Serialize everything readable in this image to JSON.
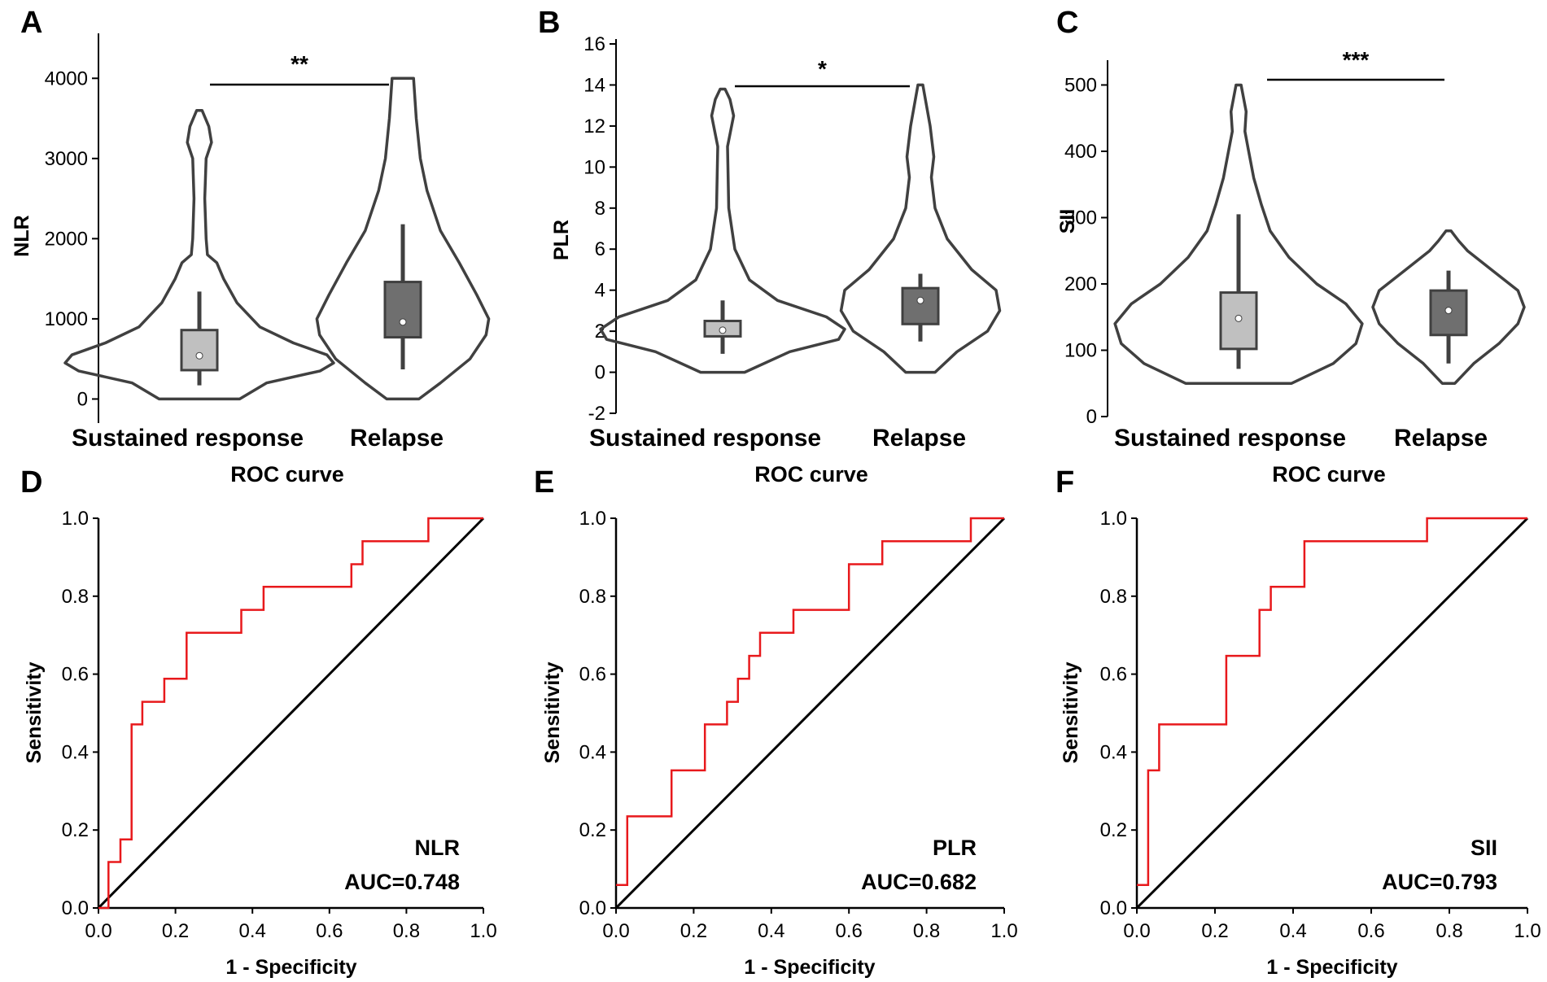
{
  "chart_data": [
    {
      "panel": "A",
      "type": "violin",
      "ylabel": "NLR",
      "ylim": [
        -300,
        4500
      ],
      "yticks": [
        0,
        1000,
        2000,
        3000,
        4000
      ],
      "categories": [
        "Sustained response",
        "Relapse"
      ],
      "significance": "**",
      "groups": [
        {
          "name": "Sustained response",
          "box_fill": "#c0c0c0",
          "whisker_low": 170,
          "q1": 360,
          "median": 540,
          "q3": 860,
          "whisker_high": 1340,
          "violin": [
            [
              0,
              0.3
            ],
            [
              200,
              0.5
            ],
            [
              350,
              0.9
            ],
            [
              450,
              1.0
            ],
            [
              550,
              0.95
            ],
            [
              700,
              0.7
            ],
            [
              900,
              0.45
            ],
            [
              1200,
              0.28
            ],
            [
              1500,
              0.18
            ],
            [
              1700,
              0.13
            ],
            [
              1800,
              0.06
            ],
            [
              2000,
              0.05
            ],
            [
              2500,
              0.04
            ],
            [
              3000,
              0.05
            ],
            [
              3200,
              0.09
            ],
            [
              3400,
              0.07
            ],
            [
              3600,
              0.02
            ]
          ]
        },
        {
          "name": "Relapse",
          "box_fill": "#6f6f6f",
          "whisker_low": 370,
          "q1": 770,
          "median": 960,
          "q3": 1460,
          "whisker_high": 2180,
          "violin": [
            [
              0,
              0.12
            ],
            [
              200,
              0.28
            ],
            [
              500,
              0.5
            ],
            [
              800,
              0.62
            ],
            [
              1000,
              0.64
            ],
            [
              1300,
              0.55
            ],
            [
              1700,
              0.42
            ],
            [
              2100,
              0.28
            ],
            [
              2600,
              0.18
            ],
            [
              3000,
              0.13
            ],
            [
              3500,
              0.1
            ],
            [
              4000,
              0.08
            ]
          ]
        }
      ]
    },
    {
      "panel": "B",
      "type": "violin",
      "ylabel": "PLR",
      "ylim": [
        -2,
        16
      ],
      "yticks": [
        -2,
        0,
        2,
        4,
        6,
        8,
        10,
        12,
        14,
        16
      ],
      "categories": [
        "Sustained response",
        "Relapse"
      ],
      "significance": "*",
      "groups": [
        {
          "name": "Sustained response",
          "box_fill": "#c0c0c0",
          "whisker_low": 0.9,
          "q1": 1.75,
          "median": 2.05,
          "q3": 2.5,
          "whisker_high": 3.5,
          "violin": [
            [
              0,
              0.18
            ],
            [
              1,
              0.55
            ],
            [
              1.6,
              0.95
            ],
            [
              2.1,
              1.0
            ],
            [
              2.7,
              0.85
            ],
            [
              3.5,
              0.45
            ],
            [
              4.5,
              0.22
            ],
            [
              6,
              0.1
            ],
            [
              8,
              0.05
            ],
            [
              11,
              0.04
            ],
            [
              12.5,
              0.09
            ],
            [
              13.3,
              0.06
            ],
            [
              13.8,
              0.02
            ]
          ]
        },
        {
          "name": "Relapse",
          "box_fill": "#6f6f6f",
          "whisker_low": 1.5,
          "q1": 2.35,
          "median": 3.5,
          "q3": 4.1,
          "whisker_high": 4.8,
          "violin": [
            [
              0,
              0.12
            ],
            [
              1,
              0.3
            ],
            [
              2,
              0.55
            ],
            [
              3,
              0.65
            ],
            [
              4,
              0.62
            ],
            [
              5,
              0.42
            ],
            [
              6.5,
              0.22
            ],
            [
              8,
              0.12
            ],
            [
              9.5,
              0.09
            ],
            [
              10.5,
              0.11
            ],
            [
              12,
              0.08
            ],
            [
              13,
              0.05
            ],
            [
              14,
              0.02
            ]
          ]
        }
      ]
    },
    {
      "panel": "C",
      "type": "violin",
      "ylabel": "SII",
      "ylim": [
        0,
        530
      ],
      "yticks": [
        0,
        100,
        200,
        300,
        400,
        500
      ],
      "categories": [
        "Sustained response",
        "Relapse"
      ],
      "significance": "***",
      "groups": [
        {
          "name": "Sustained response",
          "box_fill": "#c0c0c0",
          "whisker_low": 72,
          "q1": 102,
          "median": 148,
          "q3": 187,
          "whisker_high": 305,
          "violin": [
            [
              50,
              0.42
            ],
            [
              80,
              0.75
            ],
            [
              110,
              0.93
            ],
            [
              140,
              0.98
            ],
            [
              170,
              0.85
            ],
            [
              200,
              0.62
            ],
            [
              240,
              0.4
            ],
            [
              280,
              0.25
            ],
            [
              320,
              0.18
            ],
            [
              360,
              0.12
            ],
            [
              400,
              0.08
            ],
            [
              430,
              0.05
            ],
            [
              460,
              0.06
            ],
            [
              480,
              0.04
            ],
            [
              500,
              0.02
            ]
          ]
        },
        {
          "name": "Relapse",
          "box_fill": "#6f6f6f",
          "whisker_low": 80,
          "q1": 123,
          "median": 160,
          "q3": 190,
          "whisker_high": 220,
          "violin": [
            [
              50,
              0.05
            ],
            [
              80,
              0.2
            ],
            [
              110,
              0.4
            ],
            [
              140,
              0.55
            ],
            [
              165,
              0.6
            ],
            [
              190,
              0.55
            ],
            [
              220,
              0.35
            ],
            [
              250,
              0.15
            ],
            [
              265,
              0.08
            ],
            [
              280,
              0.02
            ]
          ]
        }
      ]
    },
    {
      "panel": "D",
      "type": "line",
      "title": "ROC curve",
      "xlabel": "1 - Specificity",
      "ylabel": "Sensitivity",
      "xlim": [
        0,
        1
      ],
      "ylim": [
        0,
        1
      ],
      "ticks": [
        "0.0",
        "0.2",
        "0.4",
        "0.6",
        "0.8",
        "1.0"
      ],
      "marker": "NLR",
      "auc_label": "AUC=0.748",
      "roc": [
        [
          0,
          0
        ],
        [
          0.026,
          0
        ],
        [
          0.026,
          0.118
        ],
        [
          0.057,
          0.118
        ],
        [
          0.057,
          0.176
        ],
        [
          0.086,
          0.176
        ],
        [
          0.086,
          0.471
        ],
        [
          0.114,
          0.471
        ],
        [
          0.114,
          0.529
        ],
        [
          0.171,
          0.529
        ],
        [
          0.171,
          0.588
        ],
        [
          0.229,
          0.588
        ],
        [
          0.229,
          0.706
        ],
        [
          0.371,
          0.706
        ],
        [
          0.371,
          0.765
        ],
        [
          0.429,
          0.765
        ],
        [
          0.429,
          0.824
        ],
        [
          0.657,
          0.824
        ],
        [
          0.657,
          0.882
        ],
        [
          0.686,
          0.882
        ],
        [
          0.686,
          0.941
        ],
        [
          0.857,
          0.941
        ],
        [
          0.857,
          1
        ],
        [
          1,
          1
        ]
      ]
    },
    {
      "panel": "E",
      "type": "line",
      "title": "ROC curve",
      "xlabel": "1 - Specificity",
      "ylabel": "Sensitivity",
      "xlim": [
        0,
        1
      ],
      "ylim": [
        0,
        1
      ],
      "ticks": [
        "0.0",
        "0.2",
        "0.4",
        "0.6",
        "0.8",
        "1.0"
      ],
      "marker": "PLR",
      "auc_label": "AUC=0.682",
      "roc": [
        [
          0,
          0.059
        ],
        [
          0.029,
          0.059
        ],
        [
          0.029,
          0.235
        ],
        [
          0.143,
          0.235
        ],
        [
          0.143,
          0.353
        ],
        [
          0.229,
          0.353
        ],
        [
          0.229,
          0.471
        ],
        [
          0.286,
          0.471
        ],
        [
          0.286,
          0.529
        ],
        [
          0.314,
          0.529
        ],
        [
          0.314,
          0.588
        ],
        [
          0.343,
          0.588
        ],
        [
          0.343,
          0.647
        ],
        [
          0.371,
          0.647
        ],
        [
          0.371,
          0.706
        ],
        [
          0.457,
          0.706
        ],
        [
          0.457,
          0.765
        ],
        [
          0.6,
          0.765
        ],
        [
          0.6,
          0.882
        ],
        [
          0.686,
          0.882
        ],
        [
          0.686,
          0.941
        ],
        [
          0.914,
          0.941
        ],
        [
          0.914,
          1
        ],
        [
          1,
          1
        ]
      ]
    },
    {
      "panel": "F",
      "type": "line",
      "title": "ROC curve",
      "xlabel": "1 - Specificity",
      "ylabel": "Sensitivity",
      "xlim": [
        0,
        1
      ],
      "ylim": [
        0,
        1
      ],
      "ticks": [
        "0.0",
        "0.2",
        "0.4",
        "0.6",
        "0.8",
        "1.0"
      ],
      "marker": "SII",
      "auc_label": "AUC=0.793",
      "roc": [
        [
          0,
          0.059
        ],
        [
          0.029,
          0.059
        ],
        [
          0.029,
          0.353
        ],
        [
          0.057,
          0.353
        ],
        [
          0.057,
          0.471
        ],
        [
          0.229,
          0.471
        ],
        [
          0.229,
          0.647
        ],
        [
          0.314,
          0.647
        ],
        [
          0.314,
          0.765
        ],
        [
          0.343,
          0.765
        ],
        [
          0.343,
          0.824
        ],
        [
          0.429,
          0.824
        ],
        [
          0.429,
          0.941
        ],
        [
          0.743,
          0.941
        ],
        [
          0.743,
          1
        ],
        [
          1,
          1
        ]
      ]
    }
  ]
}
